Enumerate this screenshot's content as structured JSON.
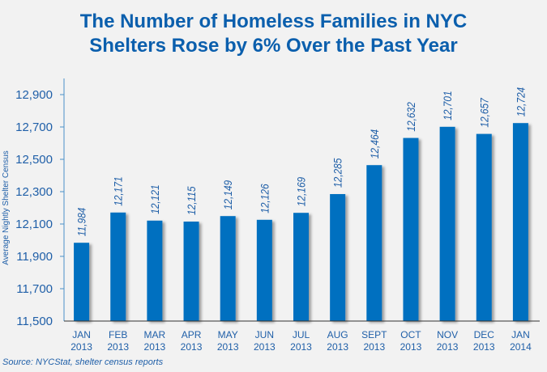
{
  "title_lines": [
    "The Number of Homeless Families in NYC",
    "Shelters Rose by 6% Over the Past Year"
  ],
  "source": "Source:  NYCStat, shelter census reports",
  "chart_data": {
    "type": "bar",
    "title": "The Number of Homeless Families in NYC Shelters Rose by 6% Over the Past Year",
    "xlabel": "",
    "ylabel": "Average Nightly Shelter Census",
    "ylim": [
      11500,
      13000
    ],
    "yticks": [
      11500,
      11700,
      11900,
      12100,
      12300,
      12500,
      12700,
      12900
    ],
    "ytick_labels": [
      "11,500",
      "11,700",
      "11,900",
      "12,100",
      "12,300",
      "12,500",
      "12,700",
      "12,900"
    ],
    "categories": [
      [
        "JAN",
        "2013"
      ],
      [
        "FEB",
        "2013"
      ],
      [
        "MAR",
        "2013"
      ],
      [
        "APR",
        "2013"
      ],
      [
        "MAY",
        "2013"
      ],
      [
        "JUN",
        "2013"
      ],
      [
        "JUL",
        "2013"
      ],
      [
        "AUG",
        "2013"
      ],
      [
        "SEPT",
        "2013"
      ],
      [
        "OCT",
        "2013"
      ],
      [
        "NOV",
        "2013"
      ],
      [
        "DEC",
        "2013"
      ],
      [
        "JAN",
        "2014"
      ]
    ],
    "values": [
      11984,
      12171,
      12121,
      12115,
      12149,
      12126,
      12169,
      12285,
      12464,
      12632,
      12701,
      12657,
      12724
    ],
    "data_labels": [
      "11,984",
      "12,171",
      "12,121",
      "12,115",
      "12,149",
      "12,126",
      "12,169",
      "12,285",
      "12,464",
      "12,632",
      "12,701",
      "12,657",
      "12,724"
    ],
    "grid": false,
    "legend": "none",
    "bar_color": "#0070c0",
    "text_color": "#1f5fa8"
  }
}
